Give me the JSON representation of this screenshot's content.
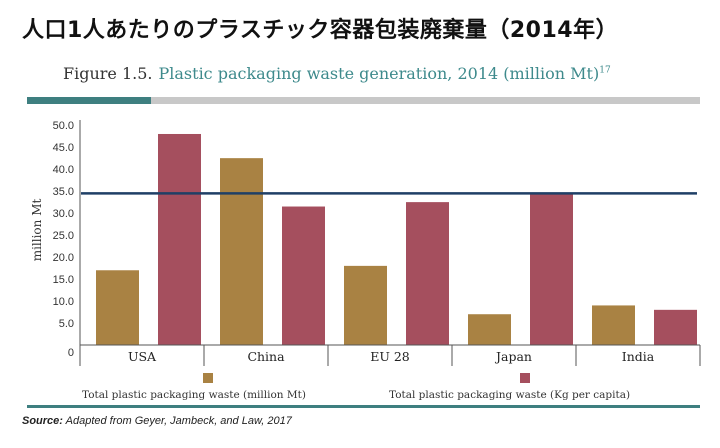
{
  "header": {
    "title": "人口1人あたりのプラスチック容器包装廃棄量（2014年）"
  },
  "figure": {
    "label": "Figure 1.5.",
    "caption": "Plastic packaging waste generation, 2014 (million Mt)",
    "caption_ref": "17"
  },
  "source": {
    "label": "Source:",
    "text": "Adapted from Geyer, Jambeck, and Law, 2017"
  },
  "chart_data": {
    "type": "bar",
    "categories": [
      "USA",
      "China",
      "EU 28",
      "Japan",
      "India"
    ],
    "series": [
      {
        "name": "Total plastic packaging waste (million Mt)",
        "values": [
          17,
          42.5,
          18,
          7,
          9
        ],
        "color": "#a98243"
      },
      {
        "name": "Total plastic packaging waste (Kg per capita)",
        "values": [
          48,
          31.5,
          32.5,
          34.5,
          8
        ],
        "color": "#a54f5e"
      }
    ],
    "ylabel": "million Mt",
    "xlabel": "",
    "ylim": [
      0,
      53
    ],
    "yticks": [
      0,
      5,
      10,
      15,
      20,
      25,
      30,
      35,
      40,
      45,
      50
    ],
    "ytick_labels": [
      "0",
      "5.0",
      "10.0",
      "15.0",
      "20.0",
      "25.0",
      "30.0",
      "35.0",
      "40.0",
      "45.0",
      "50.0"
    ],
    "reference_line": {
      "value": 34.5,
      "color": "#1f3f66"
    },
    "grid": false,
    "legend": "bottom",
    "colors": {
      "accent_teal": "#3e7f80",
      "bar_gray": "#c8c8c8",
      "axis": "#555555"
    }
  }
}
